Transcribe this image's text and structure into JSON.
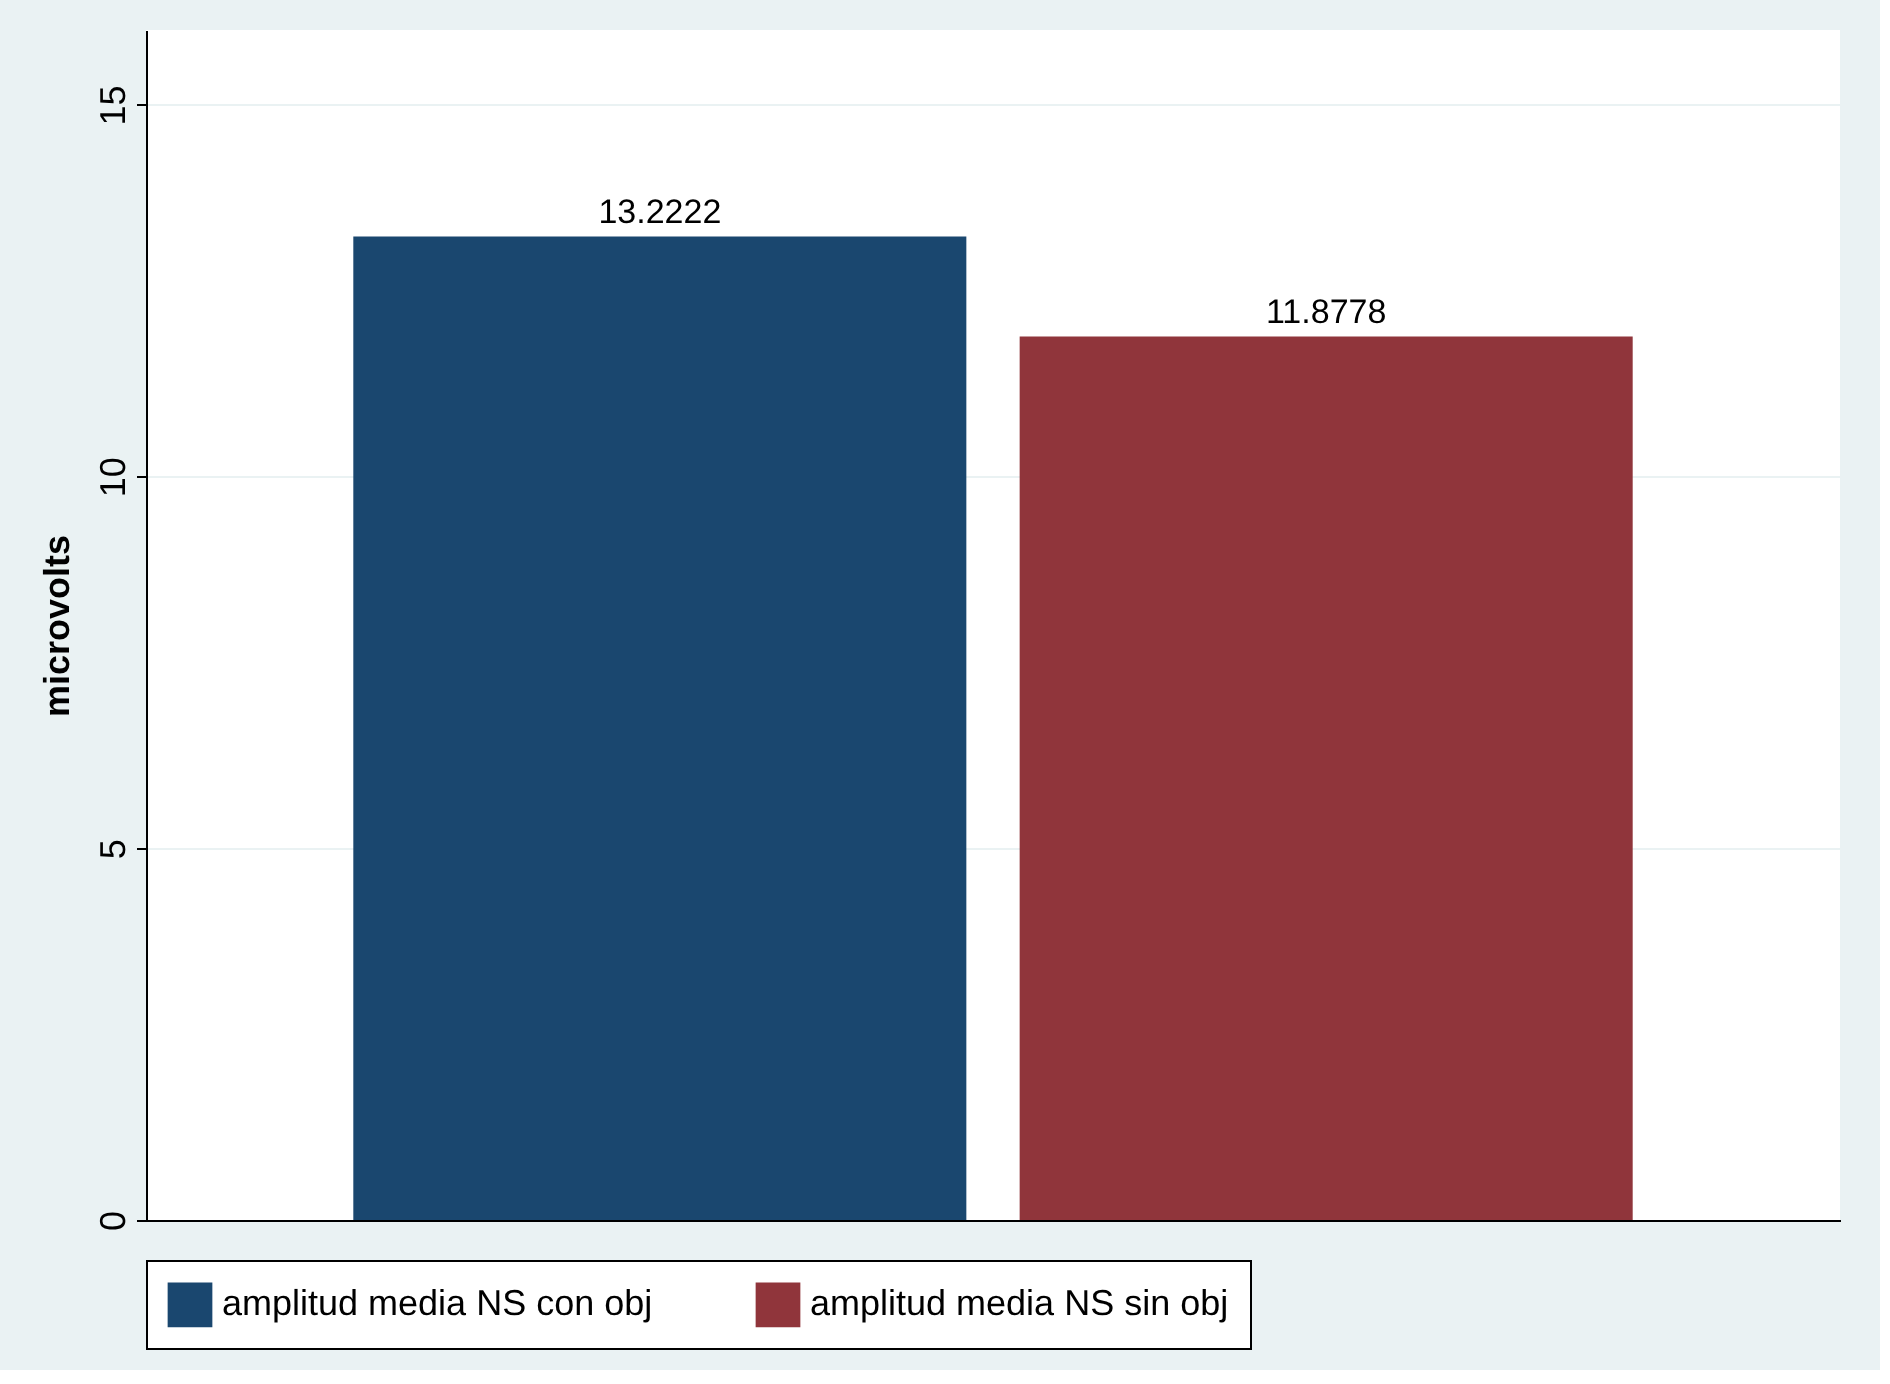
{
  "chart_data": {
    "type": "bar",
    "ylabel": "microvolts",
    "categories": [
      null
    ],
    "series": [
      {
        "name": "amplitud media NS con obj",
        "color": "#1a476f",
        "values": [
          13.2222
        ]
      },
      {
        "name": "amplitud media NS sin obj",
        "color": "#90353b",
        "values": [
          11.8778
        ]
      }
    ],
    "ylim": [
      0,
      16
    ],
    "yticks": [
      0,
      5,
      10,
      15
    ],
    "grid": "y",
    "legend": "bottom",
    "data_labels": true
  }
}
